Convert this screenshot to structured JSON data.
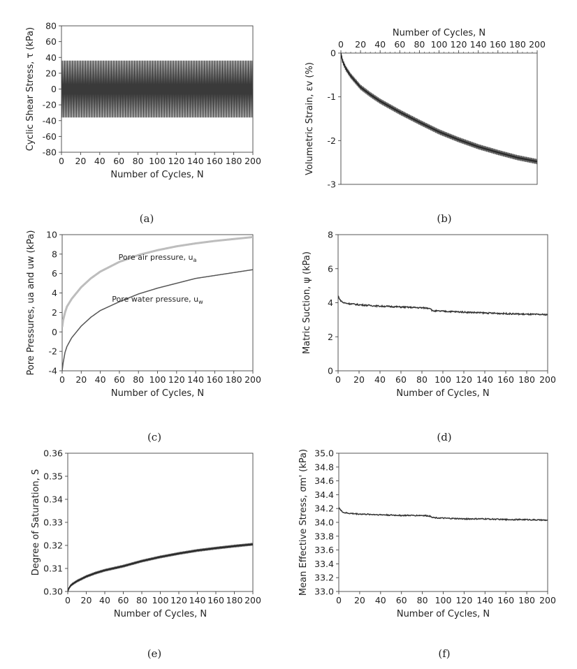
{
  "chart_data": [
    {
      "type": "line",
      "caption": "(a)",
      "xlabel": "Number of Cycles, N",
      "ylabel": "Cyclic Shear Stress, τ (kPa)",
      "xlim": [
        0,
        200
      ],
      "ylim": [
        -80,
        80
      ],
      "xticks": [
        "0",
        "20",
        "40",
        "60",
        "80",
        "100",
        "120",
        "140",
        "160",
        "180",
        "200"
      ],
      "yticks": [
        "-80",
        "-60",
        "-40",
        "-20",
        "0",
        "20",
        "40",
        "60",
        "80"
      ],
      "series": [
        {
          "oscillation": {
            "upper": 36,
            "lower": -36,
            "cycles": 200
          }
        }
      ]
    },
    {
      "type": "line",
      "caption": "(b)",
      "xlabel": "Number of Cycles, N",
      "ylabel": "Volumetric Strain, εv (%)",
      "xaxis_position": "top",
      "xlim": [
        0,
        200
      ],
      "ylim": [
        -3,
        0
      ],
      "xticks": [
        "0",
        "20",
        "40",
        "60",
        "80",
        "100",
        "120",
        "140",
        "160",
        "180",
        "200"
      ],
      "yticks": [
        "-3",
        "-2",
        "-1",
        "0"
      ],
      "series": [
        {
          "x": [
            0,
            1,
            2,
            5,
            10,
            20,
            30,
            40,
            60,
            80,
            100,
            120,
            140,
            160,
            180,
            200
          ],
          "y": [
            0,
            -0.12,
            -0.2,
            -0.35,
            -0.52,
            -0.78,
            -0.95,
            -1.1,
            -1.35,
            -1.58,
            -1.8,
            -1.98,
            -2.14,
            -2.27,
            -2.39,
            -2.48
          ],
          "band": 0.06
        }
      ]
    },
    {
      "type": "line",
      "caption": "(c)",
      "xlabel": "Number of Cycles, N",
      "ylabel": "Pore Pressures, ua and uw (kPa)",
      "xlim": [
        0,
        200
      ],
      "ylim": [
        -4,
        10
      ],
      "xticks": [
        "0",
        "20",
        "40",
        "60",
        "80",
        "100",
        "120",
        "140",
        "160",
        "180",
        "200"
      ],
      "yticks": [
        "-4",
        "-2",
        "0",
        "2",
        "4",
        "6",
        "8",
        "10"
      ],
      "series": [
        {
          "name": "Pore air pressure, ua",
          "color": "#bdbdbd",
          "x": [
            0,
            1,
            3,
            5,
            10,
            20,
            30,
            40,
            60,
            80,
            100,
            120,
            140,
            160,
            180,
            200
          ],
          "y": [
            0.5,
            1.2,
            2.0,
            2.6,
            3.4,
            4.6,
            5.5,
            6.2,
            7.2,
            7.9,
            8.4,
            8.8,
            9.1,
            9.35,
            9.55,
            9.75
          ]
        },
        {
          "name": "Pore water pressure, uw",
          "color": "#555555",
          "x": [
            0,
            1,
            3,
            5,
            10,
            20,
            30,
            40,
            60,
            80,
            100,
            120,
            140,
            160,
            180,
            200
          ],
          "y": [
            -4,
            -3.2,
            -2.1,
            -1.5,
            -0.6,
            0.6,
            1.5,
            2.2,
            3.1,
            3.9,
            4.5,
            5.0,
            5.5,
            5.8,
            6.1,
            6.4
          ]
        }
      ],
      "annotations": [
        {
          "main": "Pore air pressure, u",
          "sub": "a"
        },
        {
          "main": "Pore water pressure, u",
          "sub": "w"
        }
      ]
    },
    {
      "type": "line",
      "caption": "(d)",
      "xlabel": "Number of Cycles, N",
      "ylabel": "Matric Suction, ψ (kPa)",
      "xlim": [
        0,
        200
      ],
      "ylim": [
        0,
        8
      ],
      "xticks": [
        "0",
        "20",
        "40",
        "60",
        "80",
        "100",
        "120",
        "140",
        "160",
        "180",
        "200"
      ],
      "yticks": [
        "0",
        "2",
        "4",
        "6",
        "8"
      ],
      "series": [
        {
          "x": [
            0,
            2,
            5,
            10,
            20,
            40,
            60,
            80,
            88,
            90,
            100,
            120,
            140,
            160,
            180,
            200
          ],
          "y": [
            4.4,
            4.15,
            4.0,
            3.95,
            3.88,
            3.8,
            3.75,
            3.7,
            3.68,
            3.52,
            3.5,
            3.45,
            3.4,
            3.36,
            3.32,
            3.3
          ],
          "noise": 0.04
        }
      ]
    },
    {
      "type": "line",
      "caption": "(e)",
      "xlabel": "Number of Cycles, N",
      "ylabel": "Degree of Saturation, S",
      "xlim": [
        0,
        200
      ],
      "ylim": [
        0.3,
        0.36
      ],
      "xticks": [
        "0",
        "20",
        "40",
        "60",
        "80",
        "100",
        "120",
        "140",
        "160",
        "180",
        "200"
      ],
      "yticks": [
        "0.30",
        "0.31",
        "0.32",
        "0.33",
        "0.34",
        "0.35",
        "0.36"
      ],
      "series": [
        {
          "x": [
            0,
            1,
            3,
            5,
            10,
            20,
            30,
            40,
            60,
            80,
            100,
            120,
            140,
            160,
            180,
            200
          ],
          "y": [
            0.3,
            0.3012,
            0.3025,
            0.3032,
            0.3045,
            0.3065,
            0.308,
            0.3092,
            0.311,
            0.3132,
            0.315,
            0.3165,
            0.3178,
            0.3188,
            0.3197,
            0.3205
          ],
          "band": 0.0006
        }
      ]
    },
    {
      "type": "line",
      "caption": "(f)",
      "xlabel": "Number of Cycles, N",
      "ylabel": "Mean Effective Stress, σm' (kPa)",
      "xlim": [
        0,
        200
      ],
      "ylim": [
        33.0,
        35.0
      ],
      "xticks": [
        "0",
        "20",
        "40",
        "60",
        "80",
        "100",
        "120",
        "140",
        "160",
        "180",
        "200"
      ],
      "yticks": [
        "33.0",
        "33.2",
        "33.4",
        "33.6",
        "33.8",
        "34.0",
        "34.2",
        "34.4",
        "34.6",
        "34.8",
        "35.0"
      ],
      "series": [
        {
          "x": [
            0,
            2,
            5,
            10,
            20,
            40,
            60,
            80,
            88,
            90,
            100,
            120,
            140,
            160,
            180,
            200
          ],
          "y": [
            34.22,
            34.17,
            34.14,
            34.13,
            34.12,
            34.11,
            34.1,
            34.1,
            34.09,
            34.07,
            34.06,
            34.05,
            34.05,
            34.04,
            34.04,
            34.03
          ],
          "noise": 0.008
        }
      ]
    }
  ]
}
